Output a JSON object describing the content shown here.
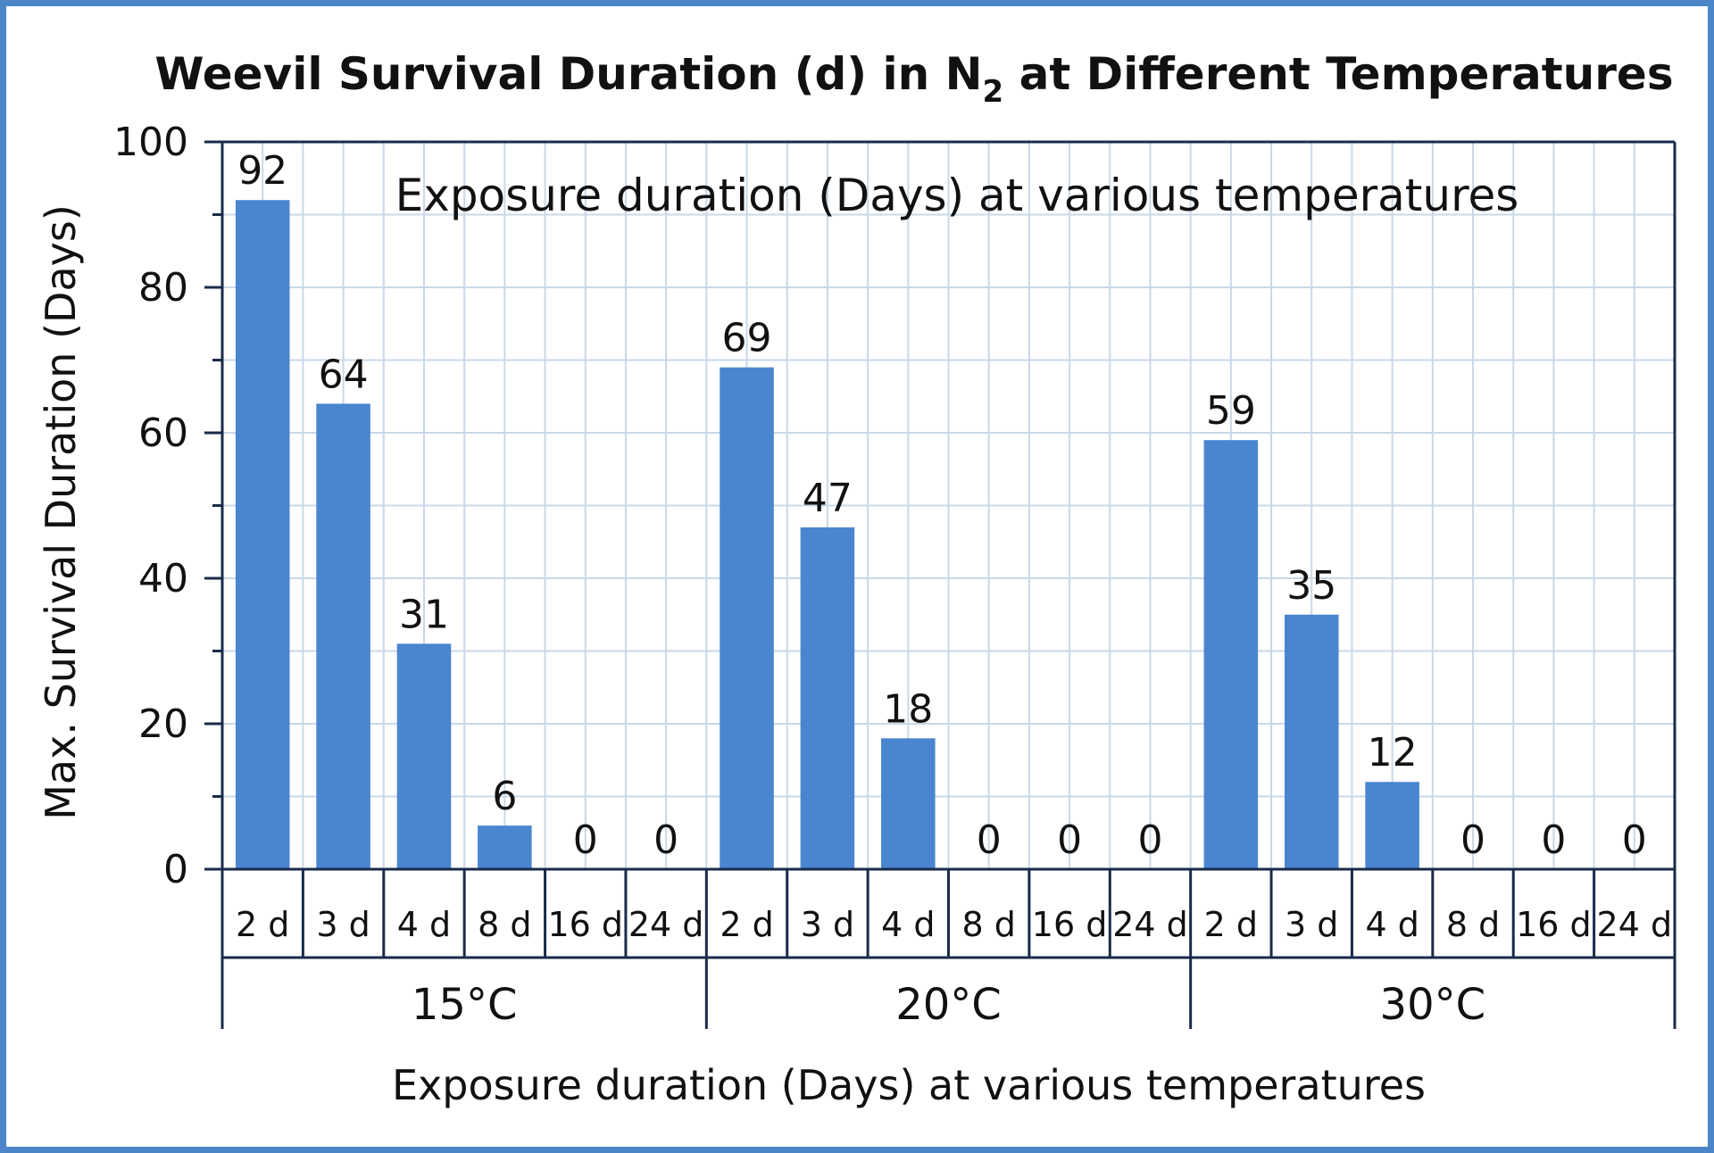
{
  "chart_data": {
    "type": "bar",
    "title_main": "Weevil Survival Duration (d) in N",
    "title_sub": "2",
    "title_rest": " at Different Temperatures",
    "inner_label": "Exposure duration (Days) at various temperatures",
    "xlabel": "Exposure duration (Days) at various temperatures",
    "ylabel": "Max. Survival Duration (Days)",
    "ylim": [
      0,
      100
    ],
    "yticks": [
      "0",
      "20",
      "40",
      "60",
      "80",
      "100"
    ],
    "grid": true,
    "legend": "none",
    "bar_color": "#4a86d0",
    "groups": [
      {
        "name": "15°C",
        "categories": [
          "2 d",
          "3 d",
          "4 d",
          "8 d",
          "16 d",
          "24 d"
        ],
        "values": [
          92,
          64,
          31,
          6,
          0,
          0
        ]
      },
      {
        "name": "20°C",
        "categories": [
          "2 d",
          "3 d",
          "4 d",
          "8 d",
          "16 d",
          "24 d"
        ],
        "values": [
          69,
          47,
          18,
          0,
          0,
          0
        ]
      },
      {
        "name": "30°C",
        "categories": [
          "2 d",
          "3 d",
          "4 d",
          "8 d",
          "16 d",
          "24 d"
        ],
        "values": [
          59,
          35,
          12,
          0,
          0,
          0
        ]
      }
    ]
  }
}
